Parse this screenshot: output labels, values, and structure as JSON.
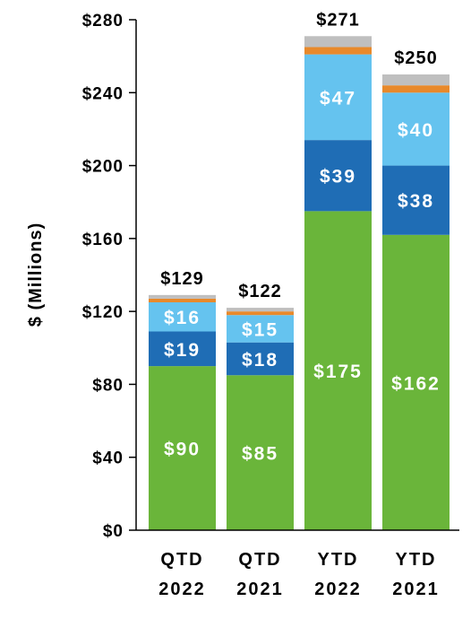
{
  "chart_data": {
    "type": "bar",
    "stacked": true,
    "ylabel": "$ (Millions)",
    "ylim": [
      0,
      280
    ],
    "yticks": [
      0,
      40,
      80,
      120,
      160,
      200,
      240,
      280
    ],
    "ytick_labels": [
      "$0",
      "$40",
      "$80",
      "$120",
      "$160",
      "$200",
      "$240",
      "$280"
    ],
    "categories": [
      {
        "line1": "QTD",
        "line2": "2022"
      },
      {
        "line1": "QTD",
        "line2": "2021"
      },
      {
        "line1": "YTD",
        "line2": "2022"
      },
      {
        "line1": "YTD",
        "line2": "2021"
      }
    ],
    "series": [
      {
        "color": "#6ab53a",
        "values": [
          90,
          85,
          175,
          162
        ],
        "labels": [
          "$90",
          "$85",
          "$175",
          "$162"
        ]
      },
      {
        "color": "#1f6db5",
        "values": [
          19,
          18,
          39,
          38
        ],
        "labels": [
          "$19",
          "$18",
          "$39",
          "$38"
        ]
      },
      {
        "color": "#65c3ef",
        "values": [
          16,
          15,
          47,
          40
        ],
        "labels": [
          "$16",
          "$15",
          "$47",
          "$40"
        ]
      },
      {
        "color": "#e8892b",
        "values": [
          2,
          2,
          4,
          4
        ],
        "labels": [
          "",
          "",
          "",
          ""
        ]
      },
      {
        "color": "#bfbfbf",
        "values": [
          2,
          2,
          6,
          6
        ],
        "labels": [
          "",
          "",
          "",
          ""
        ]
      }
    ],
    "totals": [
      129,
      122,
      271,
      250
    ],
    "total_labels": [
      "$129",
      "$122",
      "$271",
      "$250"
    ],
    "grid": false,
    "legend": "none"
  }
}
